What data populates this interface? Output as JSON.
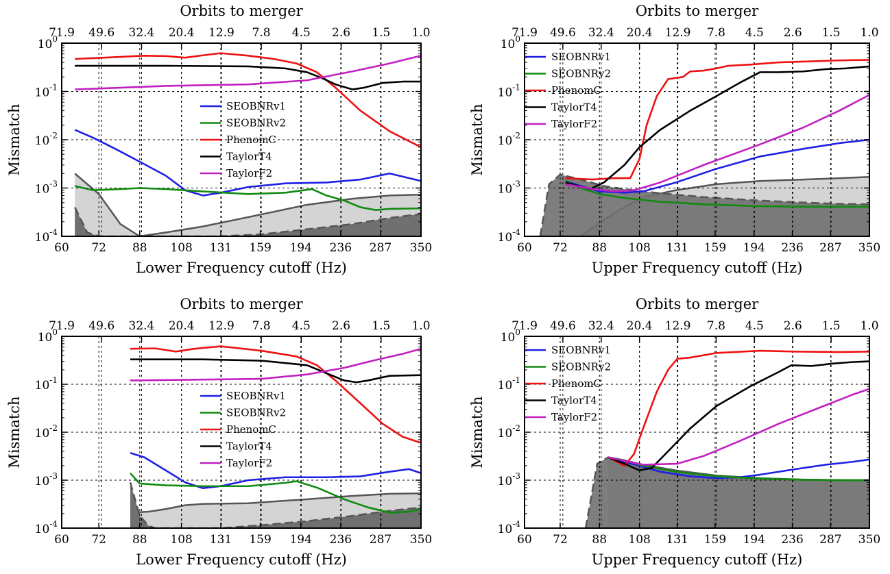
{
  "colors": {
    "SEOBNRv1": "#1f1fe6",
    "SEOBNRv2": "#108a10",
    "PhenomC": "#ee1111",
    "TaylorT4": "#000000",
    "TaylorF2": "#c21fc2",
    "band_light": "#d4d4d4",
    "band_dark": "#707070",
    "band_edge": "#555555"
  },
  "chart_data": [
    {
      "type": "line",
      "id": "top-left",
      "xlabel": "Lower Frequency cutoff (Hz)",
      "ylabel": "Mismatch",
      "top_label": "Orbits to merger",
      "x_scale": "log",
      "y_scale": "log",
      "xlim": [
        60,
        350
      ],
      "ylim": [
        0.0001,
        1
      ],
      "grid": true,
      "x_ticks": [
        "60",
        "72",
        "88",
        "108",
        "131",
        "159",
        "194",
        "236",
        "287",
        "350"
      ],
      "top_ticks": [
        "71.9",
        "49.6",
        "32.4",
        "20.4",
        "12.9",
        "7.8",
        "4.5",
        "2.6",
        "1.5",
        "1.0"
      ],
      "y_ticks": [
        "10^0",
        "10^-1",
        "10^-2",
        "10^-3",
        "10^-4"
      ],
      "legend": {
        "placement": "center",
        "entries": [
          "SEOBNRv1",
          "SEOBNRv2",
          "PhenomC",
          "TaylorT4",
          "TaylorF2"
        ]
      },
      "series": [
        {
          "name": "SEOBNRv1",
          "x": [
            64,
            70,
            78,
            88,
            100,
            110,
            120,
            131,
            150,
            180,
            220,
            260,
            300,
            350
          ],
          "values": [
            0.016,
            0.011,
            0.0065,
            0.0035,
            0.0018,
            0.0009,
            0.0007,
            0.0008,
            0.00105,
            0.00125,
            0.0013,
            0.0015,
            0.002,
            0.0014
          ]
        },
        {
          "name": "SEOBNRv2",
          "x": [
            64,
            70,
            80,
            88,
            100,
            120,
            150,
            180,
            205,
            220,
            240,
            260,
            280,
            300,
            350
          ],
          "values": [
            0.0011,
            0.0009,
            0.00095,
            0.001,
            0.00095,
            0.00085,
            0.00075,
            0.0008,
            0.00095,
            0.0007,
            0.00055,
            0.0004,
            0.00035,
            0.00037,
            0.00038
          ]
        },
        {
          "name": "PhenomC",
          "x": [
            64,
            80,
            90,
            100,
            110,
            120,
            131,
            150,
            170,
            190,
            210,
            230,
            260,
            300,
            350
          ],
          "values": [
            0.47,
            0.52,
            0.55,
            0.54,
            0.5,
            0.56,
            0.62,
            0.55,
            0.47,
            0.38,
            0.25,
            0.12,
            0.04,
            0.015,
            0.007
          ]
        },
        {
          "name": "TaylorT4",
          "x": [
            64,
            100,
            150,
            180,
            200,
            215,
            230,
            250,
            265,
            290,
            320,
            350
          ],
          "values": [
            0.34,
            0.34,
            0.33,
            0.3,
            0.25,
            0.19,
            0.14,
            0.11,
            0.12,
            0.15,
            0.16,
            0.16
          ]
        },
        {
          "name": "TaylorF2",
          "x": [
            64,
            100,
            150,
            200,
            250,
            300,
            350
          ],
          "values": [
            0.11,
            0.13,
            0.14,
            0.17,
            0.26,
            0.38,
            0.55
          ]
        },
        {
          "name": "band_light",
          "x": [
            64,
            72,
            80,
            88,
            100,
            120,
            150,
            200,
            250,
            300,
            350
          ],
          "values": [
            0.002,
            0.00075,
            0.00018,
            0.0001,
            0.00012,
            0.00016,
            0.00025,
            0.00045,
            0.0006,
            0.0007,
            0.00073
          ]
        },
        {
          "name": "band_dark",
          "x": [
            64,
            68,
            72,
            130,
            160,
            200,
            250,
            300,
            350
          ],
          "values": [
            0.0004,
            0.00012,
            0.0001,
            0.0001,
            0.00011,
            0.00014,
            0.00018,
            0.00024,
            0.00029
          ]
        }
      ]
    },
    {
      "type": "line",
      "id": "top-right",
      "xlabel": "Upper Frequency cutoff (Hz)",
      "ylabel": "Mismatch",
      "top_label": "Orbits to merger",
      "x_scale": "log",
      "y_scale": "log",
      "xlim": [
        60,
        350
      ],
      "ylim": [
        0.0001,
        1
      ],
      "grid": true,
      "x_ticks": [
        "60",
        "72",
        "88",
        "108",
        "131",
        "159",
        "194",
        "236",
        "287",
        "350"
      ],
      "top_ticks": [
        "71.9",
        "49.6",
        "32.4",
        "20.4",
        "12.9",
        "7.8",
        "4.5",
        "2.6",
        "1.5",
        "1.0"
      ],
      "y_ticks": [
        "10^0",
        "10^-1",
        "10^-2",
        "10^-3",
        "10^-4"
      ],
      "legend": {
        "placement": "top-left",
        "entries": [
          "SEOBNRv1",
          "SEOBNRv2",
          "PhenomC",
          "TaylorT4",
          "TaylorF2"
        ]
      },
      "series": [
        {
          "name": "SEOBNRv1",
          "x": [
            74,
            80,
            88,
            100,
            110,
            130,
            160,
            200,
            250,
            300,
            350
          ],
          "values": [
            0.0014,
            0.0011,
            0.00085,
            0.0008,
            0.00085,
            0.0013,
            0.0025,
            0.0045,
            0.0065,
            0.0085,
            0.01
          ]
        },
        {
          "name": "SEOBNRv2",
          "x": [
            74,
            80,
            88,
            100,
            120,
            150,
            200,
            250,
            300,
            350
          ],
          "values": [
            0.0014,
            0.001,
            0.00075,
            0.00062,
            0.00052,
            0.00046,
            0.00042,
            0.00041,
            0.00041,
            0.00041
          ]
        },
        {
          "name": "PhenomC",
          "x": [
            74,
            85,
            95,
            103,
            108,
            112,
            118,
            125,
            135,
            140,
            150,
            160,
            170,
            190,
            220,
            260,
            300,
            350
          ],
          "values": [
            0.0016,
            0.0015,
            0.0016,
            0.0016,
            0.004,
            0.02,
            0.08,
            0.18,
            0.2,
            0.26,
            0.27,
            0.3,
            0.34,
            0.36,
            0.4,
            0.42,
            0.44,
            0.45
          ]
        },
        {
          "name": "TaylorT4",
          "x": [
            74,
            84,
            90,
            100,
            108,
            120,
            140,
            160,
            180,
            200,
            220,
            250,
            280,
            310,
            350
          ],
          "values": [
            0.0013,
            0.00095,
            0.0013,
            0.003,
            0.007,
            0.016,
            0.04,
            0.08,
            0.15,
            0.25,
            0.25,
            0.26,
            0.29,
            0.3,
            0.33
          ]
        },
        {
          "name": "TaylorF2",
          "x": [
            74,
            85,
            95,
            105,
            120,
            150,
            200,
            250,
            300,
            350
          ],
          "values": [
            0.0012,
            0.00095,
            0.00085,
            0.0009,
            0.0013,
            0.003,
            0.008,
            0.018,
            0.04,
            0.085
          ]
        },
        {
          "name": "band_light",
          "x": [
            74,
            80,
            90,
            100,
            110,
            130,
            160,
            200,
            250,
            300,
            350
          ],
          "values": [
            0.0001,
            0.0001,
            0.00022,
            0.0004,
            0.00065,
            0.0009,
            0.0012,
            0.0014,
            0.0015,
            0.0016,
            0.0017
          ]
        },
        {
          "name": "band_dark",
          "x": [
            65,
            68,
            72,
            80,
            90,
            100,
            120,
            150,
            200,
            250,
            300,
            350
          ],
          "values": [
            0.0001,
            0.0012,
            0.0019,
            0.0015,
            0.0011,
            0.00095,
            0.00078,
            0.00065,
            0.00055,
            0.0005,
            0.00047,
            0.00046
          ]
        }
      ]
    },
    {
      "type": "line",
      "id": "bottom-left",
      "xlabel": "Lower Frequency cutoff (Hz)",
      "ylabel": "Mismatch",
      "top_label": "Orbits to merger",
      "x_scale": "log",
      "y_scale": "log",
      "xlim": [
        60,
        350
      ],
      "ylim": [
        0.0001,
        1
      ],
      "grid": true,
      "x_ticks": [
        "60",
        "72",
        "88",
        "108",
        "131",
        "159",
        "194",
        "236",
        "287",
        "350"
      ],
      "top_ticks": [
        "71.9",
        "49.6",
        "32.4",
        "20.4",
        "12.9",
        "7.8",
        "4.5",
        "2.6",
        "1.5",
        "1.0"
      ],
      "y_ticks": [
        "10^0",
        "10^-1",
        "10^-2",
        "10^-3",
        "10^-4"
      ],
      "legend": {
        "placement": "center",
        "entries": [
          "SEOBNRv1",
          "SEOBNRv2",
          "PhenomC",
          "TaylorT4",
          "TaylorF2"
        ]
      },
      "series": [
        {
          "name": "SEOBNRv1",
          "x": [
            84,
            90,
            100,
            110,
            120,
            131,
            150,
            180,
            220,
            260,
            300,
            330,
            350
          ],
          "values": [
            0.0037,
            0.003,
            0.0016,
            0.0009,
            0.00068,
            0.00075,
            0.001,
            0.00115,
            0.00115,
            0.0012,
            0.0015,
            0.0017,
            0.0014
          ]
        },
        {
          "name": "SEOBNRv2",
          "x": [
            84,
            88,
            100,
            120,
            150,
            180,
            190,
            210,
            240,
            270,
            300,
            330,
            350
          ],
          "values": [
            0.0014,
            0.00085,
            0.00078,
            0.00075,
            0.00075,
            0.00088,
            0.00095,
            0.0007,
            0.0004,
            0.00027,
            0.00021,
            0.00022,
            0.00025
          ]
        },
        {
          "name": "PhenomC",
          "x": [
            84,
            95,
            105,
            115,
            131,
            160,
            190,
            210,
            230,
            260,
            290,
            320,
            350
          ],
          "values": [
            0.55,
            0.56,
            0.48,
            0.55,
            0.62,
            0.5,
            0.38,
            0.25,
            0.12,
            0.04,
            0.015,
            0.008,
            0.006
          ]
        },
        {
          "name": "TaylorT4",
          "x": [
            84,
            120,
            160,
            200,
            220,
            240,
            255,
            270,
            300,
            350
          ],
          "values": [
            0.33,
            0.33,
            0.31,
            0.25,
            0.17,
            0.12,
            0.11,
            0.12,
            0.15,
            0.155
          ]
        },
        {
          "name": "TaylorF2",
          "x": [
            84,
            120,
            160,
            200,
            240,
            280,
            320,
            350
          ],
          "values": [
            0.12,
            0.125,
            0.13,
            0.16,
            0.22,
            0.32,
            0.43,
            0.55
          ]
        },
        {
          "name": "band_light",
          "x": [
            84,
            92,
            100,
            110,
            120,
            150,
            200,
            250,
            300,
            350
          ],
          "values": [
            0.00021,
            0.00022,
            0.00025,
            0.0003,
            0.00032,
            0.00033,
            0.0004,
            0.00047,
            0.00052,
            0.00053
          ]
        },
        {
          "name": "band_dark",
          "x": [
            84,
            86,
            88,
            92,
            95,
            131,
            160,
            200,
            250,
            300,
            350
          ],
          "values": [
            0.0009,
            0.0004,
            0.00018,
            0.00011,
            0.0001,
            0.0001,
            0.000115,
            0.00014,
            0.00018,
            0.00023,
            0.00027
          ]
        }
      ]
    },
    {
      "type": "line",
      "id": "bottom-right",
      "xlabel": "Upper Frequency cutoff (Hz)",
      "ylabel": "Mismatch",
      "top_label": "Orbits to merger",
      "x_scale": "log",
      "y_scale": "log",
      "xlim": [
        60,
        350
      ],
      "ylim": [
        0.0001,
        1
      ],
      "grid": true,
      "x_ticks": [
        "60",
        "72",
        "88",
        "108",
        "131",
        "159",
        "194",
        "236",
        "287",
        "350"
      ],
      "top_ticks": [
        "71.9",
        "49.6",
        "32.4",
        "20.4",
        "12.9",
        "7.8",
        "4.5",
        "2.6",
        "1.5",
        "1.0"
      ],
      "y_ticks": [
        "10^0",
        "10^-1",
        "10^-2",
        "10^-3",
        "10^-4"
      ],
      "legend": {
        "placement": "top-left",
        "entries": [
          "SEOBNRv1",
          "SEOBNRv2",
          "PhenomC",
          "TaylorT4",
          "TaylorF2"
        ]
      },
      "series": [
        {
          "name": "SEOBNRv1",
          "x": [
            92,
            100,
            110,
            120,
            140,
            160,
            180,
            200,
            240,
            280,
            320,
            350
          ],
          "values": [
            0.003,
            0.0024,
            0.0019,
            0.0015,
            0.0012,
            0.0011,
            0.00115,
            0.0013,
            0.0017,
            0.0021,
            0.0024,
            0.0027
          ]
        },
        {
          "name": "SEOBNRv2",
          "x": [
            92,
            100,
            110,
            130,
            160,
            200,
            250,
            300,
            350
          ],
          "values": [
            0.003,
            0.0026,
            0.002,
            0.0015,
            0.0012,
            0.00108,
            0.00102,
            0.001,
            0.001
          ]
        },
        {
          "name": "PhenomC",
          "x": [
            92,
            100,
            105,
            110,
            118,
            125,
            131,
            140,
            160,
            200,
            240,
            300,
            350
          ],
          "values": [
            0.003,
            0.002,
            0.0035,
            0.012,
            0.07,
            0.2,
            0.34,
            0.36,
            0.45,
            0.5,
            0.48,
            0.47,
            0.48
          ]
        },
        {
          "name": "TaylorT4",
          "x": [
            92,
            100,
            108,
            115,
            125,
            140,
            160,
            190,
            220,
            235,
            260,
            290,
            320,
            350
          ],
          "values": [
            0.003,
            0.0022,
            0.0016,
            0.0018,
            0.004,
            0.012,
            0.035,
            0.09,
            0.18,
            0.25,
            0.24,
            0.27,
            0.29,
            0.3
          ]
        },
        {
          "name": "TaylorF2",
          "x": [
            92,
            110,
            131,
            150,
            180,
            220,
            270,
            320,
            350
          ],
          "values": [
            0.003,
            0.0021,
            0.0022,
            0.0032,
            0.0065,
            0.015,
            0.032,
            0.06,
            0.08
          ]
        },
        {
          "name": "band_light",
          "x": [
            92,
            100,
            110,
            130,
            160,
            200,
            250,
            300,
            350
          ],
          "values": [
            0.003,
            0.0026,
            0.0021,
            0.0016,
            0.00125,
            0.0011,
            0.00103,
            0.00101,
            0.001
          ]
        },
        {
          "name": "band_dark",
          "x": [
            82,
            87,
            92,
            100,
            110,
            130,
            160,
            200,
            250,
            300,
            350
          ],
          "values": [
            0.0001,
            0.0022,
            0.003,
            0.0024,
            0.002,
            0.0015,
            0.0012,
            0.00108,
            0.00102,
            0.001,
            0.00098
          ]
        }
      ]
    }
  ]
}
